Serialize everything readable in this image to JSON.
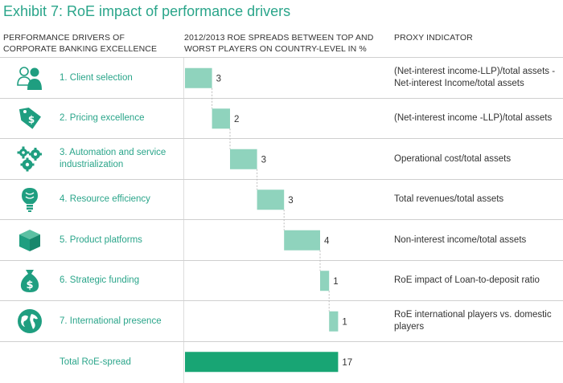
{
  "title": "Exhibit 7: RoE impact of performance drivers",
  "headers": {
    "drivers": "PERFORMANCE DRIVERS OF CORPORATE BANKING EXCELLENCE",
    "spreads": "2012/2013 RoE SPREADS BETWEEN TOP AND WORST PLAYERS ON COUNTRY-LEVEL IN %",
    "proxy": "PROXY INDICATOR"
  },
  "rows": [
    {
      "label": "1. Client selection",
      "icon": "people-icon",
      "proxy": "(Net-interest income-LLP)/total assets - Net-interest Income/total assets"
    },
    {
      "label": "2. Pricing excellence",
      "icon": "price-tag-icon",
      "proxy": "(Net-interest income -LLP)/total assets"
    },
    {
      "label": "3. Automation and service industrialization",
      "icon": "gears-icon",
      "proxy": "Operational cost/total assets"
    },
    {
      "label": "4. Resource efficiency",
      "icon": "light-bulb-icon",
      "proxy": "Total revenues/total assets"
    },
    {
      "label": "5. Product platforms",
      "icon": "box-icon",
      "proxy": "Non-interest income/total assets"
    },
    {
      "label": "6. Strategic funding",
      "icon": "money-bag-icon",
      "proxy": "RoE impact of Loan-to-deposit ratio"
    },
    {
      "label": "7. International presence",
      "icon": "globe-icon",
      "proxy": "RoE international players vs. domestic players"
    },
    {
      "label": "Total RoE-spread",
      "icon": "",
      "proxy": ""
    }
  ],
  "colors": {
    "accent": "#2aa58a",
    "bar_light": "#8fd3bd",
    "bar_total": "#18a574",
    "icon": "#1f9e80"
  },
  "chart_data": {
    "type": "bar",
    "subtype": "waterfall",
    "categories": [
      "1. Client selection",
      "2. Pricing excellence",
      "3. Automation and service industrialization",
      "4. Resource efficiency",
      "5. Product platforms",
      "6. Strategic funding",
      "7. International presence",
      "Total RoE-spread"
    ],
    "values": [
      3,
      2,
      3,
      3,
      4,
      1,
      1,
      17
    ],
    "data_labels": [
      "3",
      "2",
      "3",
      "3",
      "4",
      "1",
      "1",
      "17"
    ],
    "total_index": 7,
    "xlim": [
      0,
      17
    ],
    "unit": "%",
    "title": "Exhibit 7: RoE impact of performance drivers"
  }
}
